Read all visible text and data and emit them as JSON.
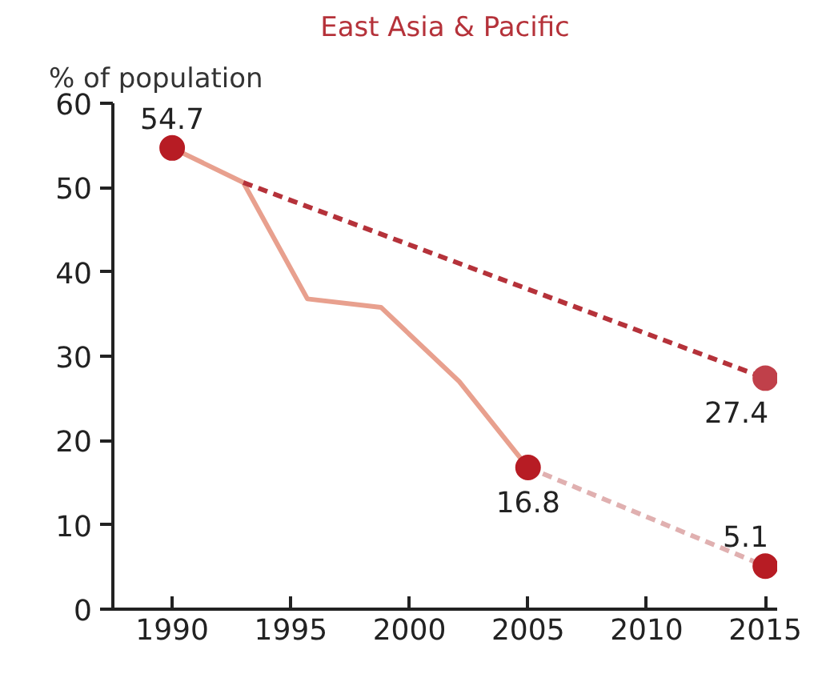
{
  "chart_data": {
    "type": "line",
    "title": "East Asia & Pacific",
    "ylabel": "% of population",
    "xlim": [
      1987.5,
      2015.5
    ],
    "xticks": [
      1990,
      1995,
      2000,
      2005,
      2010,
      2015
    ],
    "ylim": [
      0,
      60
    ],
    "yticks": [
      0,
      10,
      20,
      30,
      40,
      50,
      60
    ],
    "grid": false,
    "series": [
      {
        "line_style": "solid",
        "color": "#e8a08e",
        "x": [
          1990,
          1993,
          1995.7,
          1998.8,
          2002.1,
          2005
        ],
        "values": [
          54.7,
          50.6,
          36.8,
          35.8,
          27.0,
          16.8
        ]
      },
      {
        "line_style": "dashed",
        "color": "#b5323a",
        "x": [
          1993,
          2015
        ],
        "values": [
          50.6,
          27.4
        ]
      },
      {
        "line_style": "dashed",
        "color": "#e0b0b0",
        "x": [
          2005,
          2015
        ],
        "values": [
          16.8,
          5.1
        ]
      },
      {
        "type": "scatter",
        "marker": "circle",
        "color": "#b71c24",
        "x": [
          1990,
          2005,
          2015
        ],
        "values": [
          54.7,
          16.8,
          5.1
        ],
        "value_labels": [
          "54.7",
          "16.8",
          "5.1"
        ]
      },
      {
        "type": "scatter",
        "marker": "circle",
        "color": "#c0404a",
        "x": [
          2015
        ],
        "values": [
          27.4
        ],
        "value_labels": [
          "27.4"
        ]
      }
    ]
  }
}
